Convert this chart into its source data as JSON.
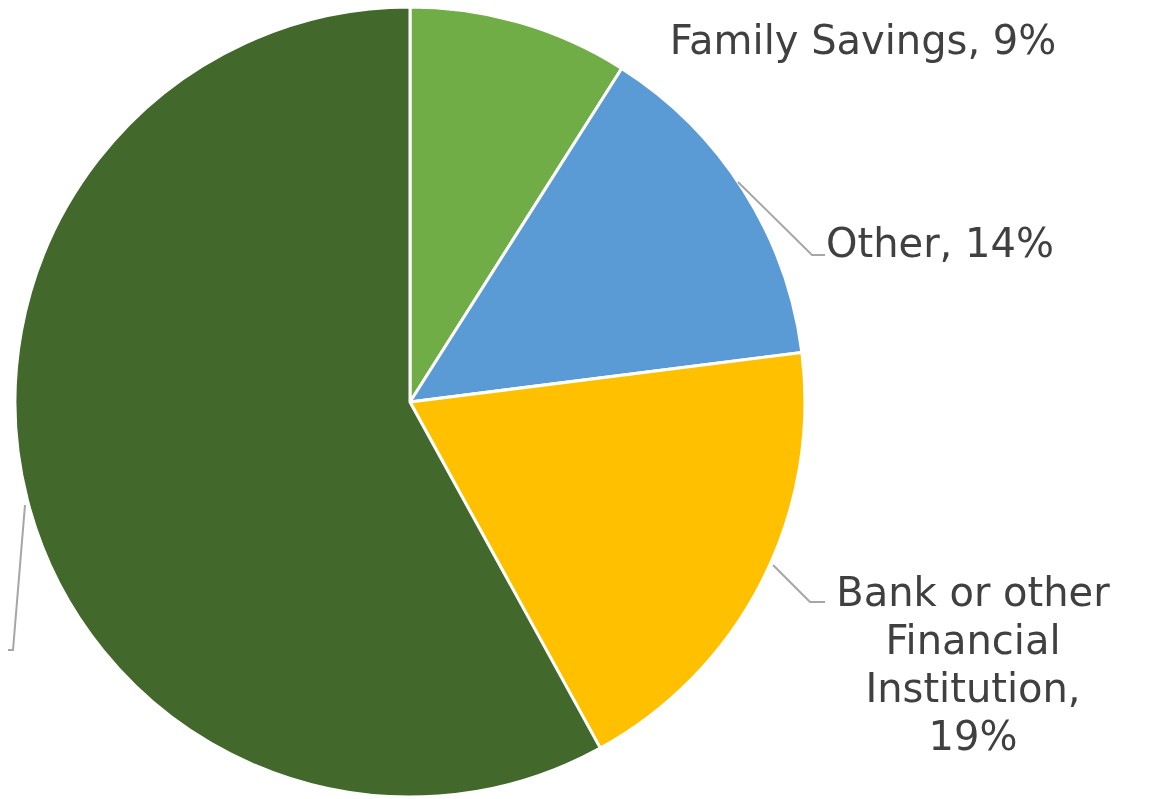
{
  "chart_data": {
    "type": "pie",
    "categories": [
      "Family Savings, 9%",
      "Other, 14%",
      "Bank or other Financial Institution, 19%",
      null
    ],
    "values": [
      9,
      14,
      19,
      58
    ],
    "colors": [
      "#70ad47",
      "#5b9bd5",
      "#ffc000",
      "#43682b"
    ]
  }
}
